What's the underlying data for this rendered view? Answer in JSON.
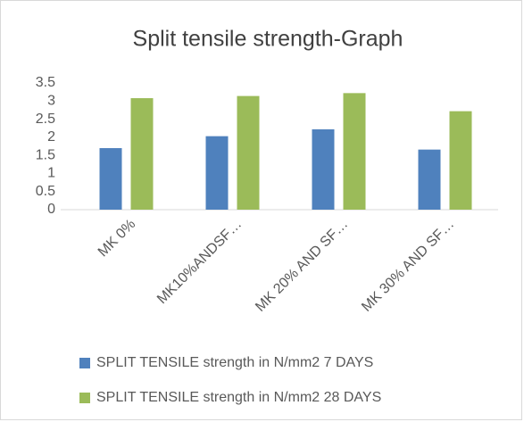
{
  "chart_data": {
    "type": "bar",
    "title": "Split tensile strength-Graph",
    "categories": [
      "MK 0%",
      "MK10%ANDSF…",
      "MK 20% AND SF…",
      "MK 30% AND SF…"
    ],
    "series": [
      {
        "name": "SPLIT TENSILE strength in N/mm2 7 DAYS",
        "color": "#4f81bd",
        "values": [
          1.7,
          2.03,
          2.22,
          1.66
        ]
      },
      {
        "name": "SPLIT TENSILE strength in N/mm2 28 DAYS",
        "color": "#9bbb59",
        "values": [
          3.08,
          3.14,
          3.22,
          2.72
        ]
      }
    ],
    "ylim": [
      0,
      3.5
    ],
    "yticks": [
      0,
      0.5,
      1,
      1.5,
      2,
      2.5,
      3,
      3.5
    ],
    "grid": false,
    "legend": "bottom"
  }
}
